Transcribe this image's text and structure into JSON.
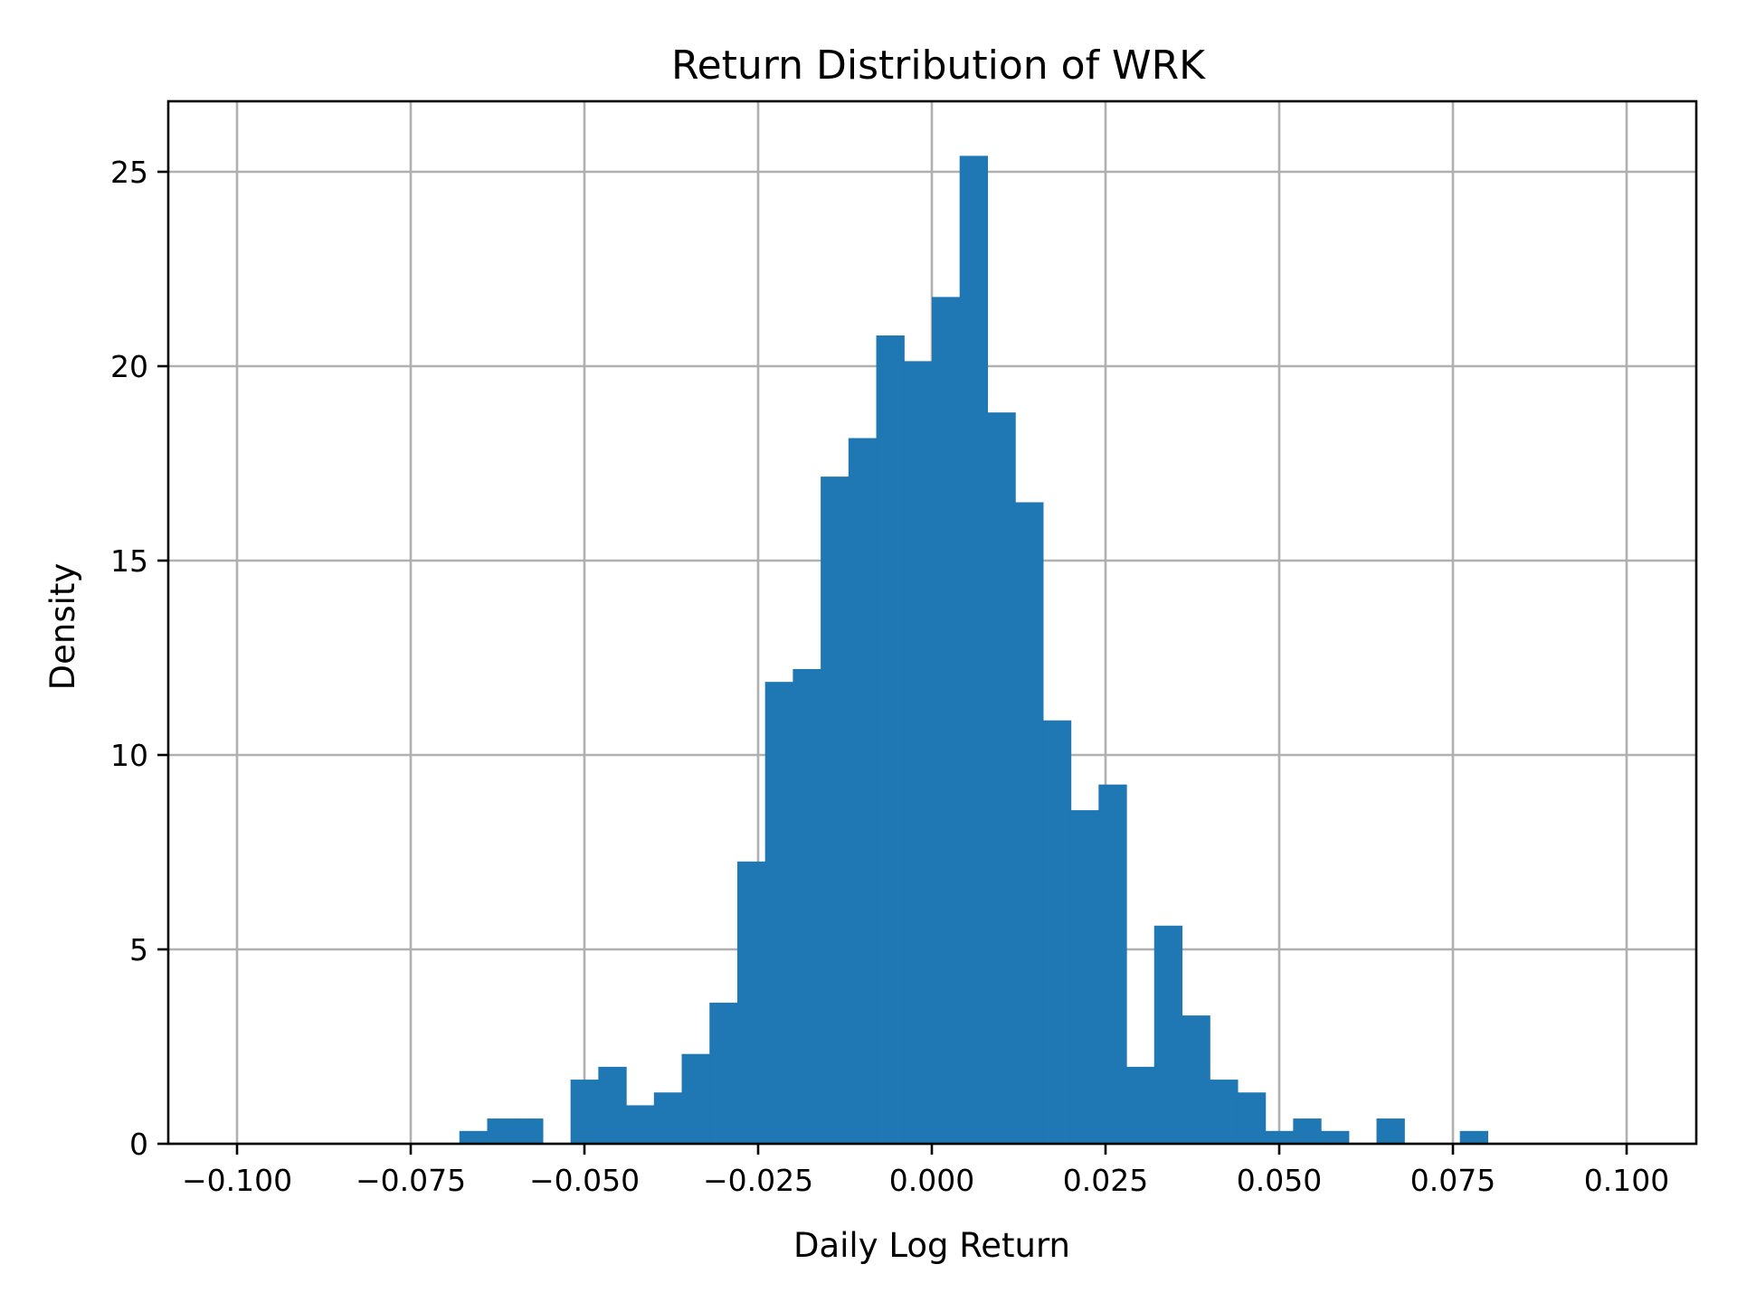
{
  "chart_data": {
    "type": "bar",
    "subtype": "histogram",
    "title": "Return Distribution of WRK",
    "xlabel": "Daily Log Return",
    "ylabel": "Density",
    "xlim": [
      -0.108,
      0.108
    ],
    "ylim": [
      0,
      26.9
    ],
    "grid": true,
    "legend": null,
    "bar_color": "#1f77b4",
    "x_ticks": [
      -0.1,
      -0.075,
      -0.05,
      -0.025,
      0.0,
      0.025,
      0.05,
      0.075,
      0.1
    ],
    "x_tick_labels": [
      "−0.100",
      "−0.075",
      "−0.050",
      "−0.025",
      "0.000",
      "0.025",
      "0.050",
      "0.075",
      "0.100"
    ],
    "y_ticks": [
      0,
      5,
      10,
      15,
      20,
      25
    ],
    "y_tick_labels": [
      "0",
      "5",
      "10",
      "15",
      "20",
      "25"
    ],
    "bin_start": -0.068,
    "bin_width": 0.004,
    "bin_edges_note": "37 equal-width bins from approx -0.068 to 0.080",
    "values": [
      0.33,
      0.65,
      0.65,
      0.0,
      1.65,
      1.98,
      0.99,
      1.32,
      2.31,
      3.63,
      7.26,
      11.88,
      12.21,
      17.16,
      18.15,
      20.79,
      20.13,
      21.78,
      25.41,
      18.81,
      16.5,
      10.89,
      8.58,
      9.24,
      1.98,
      5.61,
      3.3,
      1.65,
      1.32,
      0.33,
      0.65,
      0.33,
      0.0,
      0.65,
      0.0,
      0.0,
      0.33
    ]
  }
}
